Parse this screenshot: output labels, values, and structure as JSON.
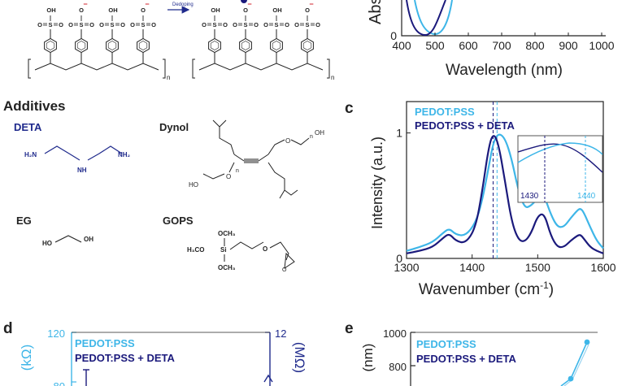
{
  "scheme": {
    "dedoping_label": "Dedoping",
    "sulfonate_atoms": {
      "o": "O",
      "s": "S",
      "oh": "OH",
      "o_minus": "O",
      "minus": "−",
      "eq": "="
    },
    "repeat_n": "n"
  },
  "panel_top": {
    "ylabel_partial": "Abs",
    "y_tick": "0",
    "xlabel": "Wavelength (nm)",
    "x_ticks": [
      "400",
      "500",
      "600",
      "700",
      "800",
      "900",
      "1000"
    ]
  },
  "additives": {
    "heading": "Additives",
    "deta": {
      "name": "DETA",
      "h2n": "H₂N",
      "nh": "NH",
      "nh2": "NH₂"
    },
    "dynol": {
      "name": "Dynol",
      "oh": "OH",
      "ho": "HO",
      "o": "O",
      "n": "n"
    },
    "eg": {
      "name": "EG",
      "ho": "HO",
      "oh": "OH"
    },
    "gops": {
      "name": "GOPS",
      "och3_top": "OCH₃",
      "h3co": "H₃CO",
      "si": "Si",
      "och3_bottom": "OCH₃",
      "o": "O"
    }
  },
  "panel_c": {
    "letter": "c",
    "ylabel": "Intensity (a.u.)",
    "xlabel": "Wavenumber (cm",
    "xlabel_sup": "-1",
    "xlabel_close": ")",
    "legend": [
      "PEDOT:PSS",
      "PEDOT:PSS + DETA"
    ],
    "inset_ticks": [
      "1430",
      "1440"
    ]
  },
  "panel_d": {
    "letter": "d",
    "left_tick": "120",
    "left_tick_partial": "80",
    "left_label_partial": "(kΩ)",
    "right_tick": "12",
    "right_label_partial": "(MΩ)",
    "legend": [
      "PEDOT:PSS",
      "PEDOT:PSS + DETA"
    ]
  },
  "panel_e": {
    "letter": "e",
    "ticks": [
      "1000",
      "800"
    ],
    "ylabel_partial": "(nm)",
    "legend": [
      "PEDOT:PSS",
      "PEDOT:PSS + DETA"
    ]
  },
  "colors": {
    "light": "#3EB6E8",
    "dark": "#1B1A7C",
    "navy": "#1F2A8C",
    "text": "#222222"
  },
  "chart_data": [
    {
      "type": "line",
      "x": [
        1300,
        1320,
        1340,
        1355,
        1365,
        1375,
        1390,
        1405,
        1415,
        1425,
        1432,
        1440,
        1450,
        1460,
        1470,
        1480,
        1490,
        1500,
        1510,
        1520,
        1530,
        1540,
        1550,
        1560,
        1565,
        1570,
        1580,
        1590,
        1600
      ],
      "series": [
        {
          "name": "PEDOT:PSS",
          "values": [
            0.06,
            0.09,
            0.13,
            0.2,
            0.24,
            0.19,
            0.18,
            0.28,
            0.45,
            0.72,
            0.92,
            1.0,
            0.96,
            0.8,
            0.55,
            0.4,
            0.42,
            0.48,
            0.5,
            0.35,
            0.25,
            0.25,
            0.32,
            0.38,
            0.4,
            0.37,
            0.25,
            0.14,
            0.08
          ]
        },
        {
          "name": "PEDOT:PSS + DETA",
          "values": [
            0.04,
            0.06,
            0.09,
            0.16,
            0.2,
            0.14,
            0.12,
            0.24,
            0.52,
            0.88,
            1.0,
            0.92,
            0.62,
            0.3,
            0.15,
            0.13,
            0.2,
            0.34,
            0.36,
            0.18,
            0.09,
            0.09,
            0.14,
            0.18,
            0.19,
            0.16,
            0.09,
            0.06,
            0.04
          ]
        }
      ],
      "xlim": [
        1300,
        1600
      ],
      "ylim": [
        0,
        1.25
      ],
      "x_ticks": [
        1300,
        1400,
        1500,
        1600
      ],
      "y_ticks": [
        0,
        1
      ],
      "peak_markers": [
        1432,
        1438
      ],
      "legend_position": "top-left",
      "grid": false,
      "x_tick_labels": [
        "1300",
        "1400",
        "1500",
        "1600"
      ],
      "y_tick_labels": [
        "0",
        "1"
      ]
    }
  ]
}
